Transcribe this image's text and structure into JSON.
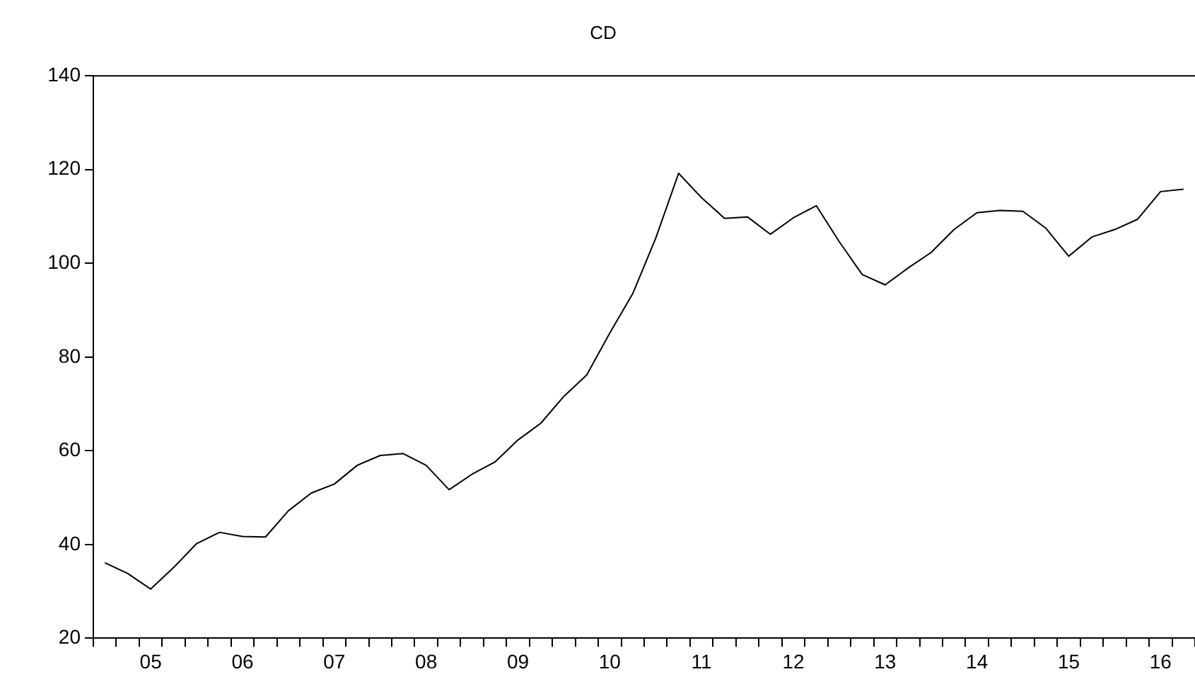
{
  "chart_data": {
    "type": "line",
    "title": "CD",
    "categories": [
      null,
      null,
      "05",
      null,
      null,
      null,
      "06",
      null,
      null,
      null,
      "07",
      null,
      null,
      null,
      "08",
      null,
      null,
      null,
      "09",
      null,
      null,
      null,
      "10",
      null,
      null,
      null,
      "11",
      null,
      null,
      null,
      "12",
      null,
      null,
      null,
      "13",
      null,
      null,
      null,
      "14",
      null,
      null,
      null,
      "15",
      null,
      null,
      null,
      "16",
      null
    ],
    "series": [
      {
        "color": "#000000",
        "values": [
          36.1,
          33.8,
          30.5,
          35.1,
          40.2,
          42.6,
          41.7,
          41.6,
          47.2,
          51.0,
          52.9,
          56.9,
          59.0,
          59.4,
          56.9,
          51.7,
          55,
          57.6,
          62.3,
          65.9,
          71.6,
          76.2,
          85.1,
          93.5,
          105.3,
          119.2,
          114.0,
          109.6,
          109.9,
          106.2,
          109.7,
          112.3,
          104.6,
          97.6,
          95.4,
          99.0,
          102.3,
          107.2,
          110.8,
          111.3,
          111.1,
          107.5,
          101.5,
          105.6,
          107.2,
          109.4,
          115.3,
          115.8
        ]
      }
    ],
    "ylim": [
      20,
      140
    ],
    "yticks": [
      20,
      40,
      60,
      80,
      100,
      120,
      140
    ],
    "grid": false,
    "marker": "none",
    "line_style": "solid"
  }
}
